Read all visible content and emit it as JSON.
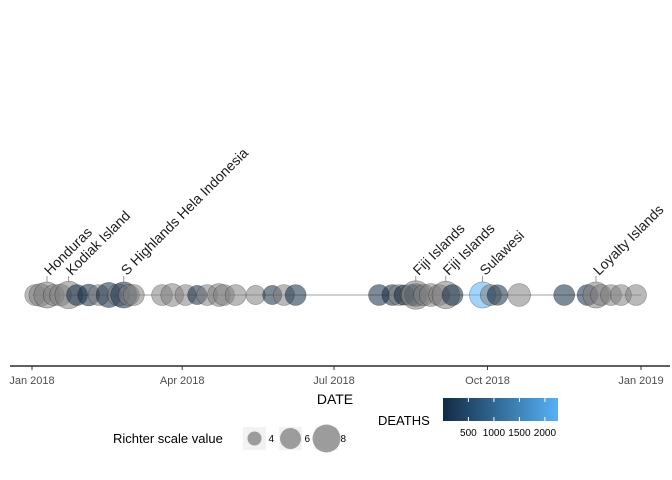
{
  "chart_data": {
    "type": "timeline",
    "xlabel": "DATE",
    "x_ticks": [
      "Jan 2018",
      "Apr 2018",
      "Jul 2018",
      "Oct 2018",
      "Jan 2019"
    ],
    "x_range": [
      "2017-12-20",
      "2019-01-10"
    ],
    "events": [
      {
        "date": "2018-01-03",
        "richter": 6.0,
        "deaths": null
      },
      {
        "date": "2018-01-06",
        "richter": 6.5,
        "deaths": null
      },
      {
        "date": "2018-01-10",
        "richter": 7.5,
        "deaths": null,
        "label": "Honduras"
      },
      {
        "date": "2018-01-14",
        "richter": 6.0,
        "deaths": null
      },
      {
        "date": "2018-01-18",
        "richter": 6.3,
        "deaths": null
      },
      {
        "date": "2018-01-23",
        "richter": 7.9,
        "deaths": null,
        "label": "Kodiak Island"
      },
      {
        "date": "2018-01-28",
        "richter": 6.0,
        "deaths": 20
      },
      {
        "date": "2018-02-04",
        "richter": 6.2,
        "deaths": 17
      },
      {
        "date": "2018-02-10",
        "richter": 6.0,
        "deaths": null
      },
      {
        "date": "2018-02-16",
        "richter": 7.2,
        "deaths": 13
      },
      {
        "date": "2018-02-22",
        "richter": 6.4,
        "deaths": null
      },
      {
        "date": "2018-02-25",
        "richter": 7.5,
        "deaths": 160,
        "label": "S Highlands  Hela  Indonesia"
      },
      {
        "date": "2018-02-28",
        "richter": 6.0,
        "deaths": null
      },
      {
        "date": "2018-03-03",
        "richter": 6.0,
        "deaths": null
      },
      {
        "date": "2018-03-20",
        "richter": 6.0,
        "deaths": null
      },
      {
        "date": "2018-03-26",
        "richter": 6.5,
        "deaths": null
      },
      {
        "date": "2018-04-03",
        "richter": 6.0,
        "deaths": null
      },
      {
        "date": "2018-04-10",
        "richter": 5.5,
        "deaths": 1
      },
      {
        "date": "2018-04-16",
        "richter": 6.0,
        "deaths": null
      },
      {
        "date": "2018-04-23",
        "richter": 6.5,
        "deaths": null
      },
      {
        "date": "2018-04-26",
        "richter": 6.0,
        "deaths": null
      },
      {
        "date": "2018-05-03",
        "richter": 6.0,
        "deaths": null
      },
      {
        "date": "2018-05-15",
        "richter": 5.5,
        "deaths": null
      },
      {
        "date": "2018-05-25",
        "richter": 5.5,
        "deaths": 4
      },
      {
        "date": "2018-06-01",
        "richter": 6.0,
        "deaths": null
      },
      {
        "date": "2018-06-08",
        "richter": 6.0,
        "deaths": 3
      },
      {
        "date": "2018-07-28",
        "richter": 6.0,
        "deaths": 17
      },
      {
        "date": "2018-08-05",
        "richter": 6.0,
        "deaths": 17
      },
      {
        "date": "2018-08-09",
        "richter": 6.0,
        "deaths": null
      },
      {
        "date": "2018-08-12",
        "richter": 5.8,
        "deaths": 5
      },
      {
        "date": "2018-08-16",
        "richter": 6.0,
        "deaths": null
      },
      {
        "date": "2018-08-19",
        "richter": 6.6,
        "deaths": 14
      },
      {
        "date": "2018-08-19",
        "richter": 8.2,
        "deaths": null,
        "label": "Fiji Islands"
      },
      {
        "date": "2018-08-24",
        "richter": 6.0,
        "deaths": null
      },
      {
        "date": "2018-08-28",
        "richter": 6.6,
        "deaths": null
      },
      {
        "date": "2018-09-02",
        "richter": 6.0,
        "deaths": null
      },
      {
        "date": "2018-09-06",
        "richter": 7.9,
        "deaths": null,
        "label": "Fiji Islands"
      },
      {
        "date": "2018-09-10",
        "richter": 6.0,
        "deaths": 3
      },
      {
        "date": "2018-09-28",
        "richter": 7.5,
        "deaths": 2256,
        "label": "Sulawesi"
      },
      {
        "date": "2018-10-03",
        "richter": 6.0,
        "deaths": null
      },
      {
        "date": "2018-10-07",
        "richter": 5.9,
        "deaths": 18
      },
      {
        "date": "2018-10-20",
        "richter": 6.5,
        "deaths": null
      },
      {
        "date": "2018-11-16",
        "richter": 6.0,
        "deaths": 8
      },
      {
        "date": "2018-11-30",
        "richter": 6.0,
        "deaths": 21
      },
      {
        "date": "2018-12-05",
        "richter": 7.5,
        "deaths": null,
        "label": "Loyalty Islands"
      },
      {
        "date": "2018-12-08",
        "richter": 6.0,
        "deaths": null
      },
      {
        "date": "2018-12-14",
        "richter": 6.0,
        "deaths": null
      },
      {
        "date": "2018-12-20",
        "richter": 6.0,
        "deaths": null
      },
      {
        "date": "2018-12-29",
        "richter": 6.0,
        "deaths": null
      }
    ],
    "grid": false,
    "legend_position": "bottom",
    "size_legend": {
      "title": "Richter scale value",
      "values": [
        4,
        6,
        8
      ]
    },
    "color_legend": {
      "title": "DEATHS",
      "ticks": [
        500,
        1000,
        1500,
        2000
      ],
      "low_color": "#132B43",
      "high_color": "#56B1F7",
      "na_color": "#7f7f7f"
    }
  }
}
